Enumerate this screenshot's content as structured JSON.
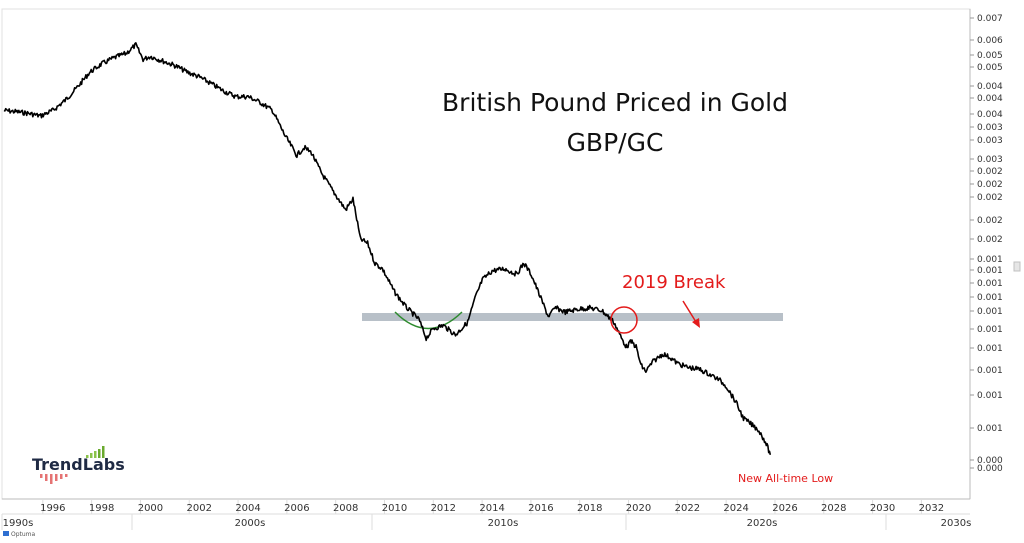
{
  "chart_data": {
    "type": "line",
    "title": "British Pound Priced in Gold",
    "subtitle": "GBP/GC",
    "scale": "log",
    "grid": false,
    "x_tick_labels": [
      "1996",
      "1998",
      "2000",
      "2002",
      "2004",
      "2006",
      "2008",
      "2010",
      "2012",
      "2014",
      "2016",
      "2018",
      "2020",
      "2022",
      "2024",
      "2026",
      "2028",
      "2030",
      "2032"
    ],
    "era_labels": [
      "1990s",
      "2000s",
      "2010s",
      "2020s",
      "2030s"
    ],
    "y_tick_labels": [
      "0.007",
      "0.006",
      "0.005",
      "0.005",
      "0.004",
      "0.004",
      "0.004",
      "0.003",
      "0.003",
      "0.003",
      "0.002",
      "0.002",
      "0.002",
      "0.002",
      "0.002",
      "0.001",
      "0.001",
      "0.001",
      "0.001",
      "0.001",
      "0.001",
      "0.001",
      "0.001",
      "0.001",
      "0.001",
      "0.000",
      "0.000"
    ],
    "series": [
      {
        "color": "#000000",
        "x": [
          1994.0,
          1994.5,
          1995.0,
          1995.5,
          1996.0,
          1996.5,
          1997.0,
          1997.5,
          1998.0,
          1998.5,
          1999.0,
          1999.4,
          1999.7,
          2000.0,
          2000.5,
          2001.0,
          2001.5,
          2002.0,
          2002.5,
          2003.0,
          2003.5,
          2004.0,
          2004.5,
          2005.0,
          2005.5,
          2006.0,
          2006.3,
          2006.6,
          2007.0,
          2007.5,
          2008.0,
          2008.3,
          2008.6,
          2008.9,
          2009.2,
          2009.5,
          2010.0,
          2010.5,
          2011.0,
          2011.3,
          2011.6,
          2012.0,
          2012.5,
          2013.0,
          2013.3,
          2013.6,
          2014.0,
          2014.5,
          2015.0,
          2015.3,
          2015.6,
          2016.0,
          2016.3,
          2016.6,
          2017.0,
          2017.5,
          2018.0,
          2018.5,
          2019.0,
          2019.3,
          2019.5,
          2019.7,
          2019.9,
          2020.1,
          2020.3,
          2020.6,
          2021.0,
          2021.3,
          2021.6,
          2022.0,
          2022.5,
          2023.0,
          2023.3,
          2023.6,
          2024.0,
          2024.3,
          2024.6,
          2024.9,
          2025.2,
          2025.4
        ],
        "values": [
          0.00395,
          0.00392,
          0.00388,
          0.00382,
          0.00395,
          0.0042,
          0.00455,
          0.00498,
          0.00525,
          0.00545,
          0.0056,
          0.0059,
          0.0054,
          0.0055,
          0.00535,
          0.0052,
          0.005,
          0.00485,
          0.00465,
          0.00445,
          0.0043,
          0.0043,
          0.00415,
          0.00395,
          0.0034,
          0.003,
          0.00315,
          0.00305,
          0.0027,
          0.0024,
          0.00215,
          0.0023,
          0.0018,
          0.00175,
          0.00155,
          0.0015,
          0.0013,
          0.00118,
          0.0011,
          0.00098,
          0.00104,
          0.00106,
          0.001,
          0.00108,
          0.00125,
          0.0014,
          0.00148,
          0.0015,
          0.00145,
          0.00155,
          0.00145,
          0.00125,
          0.00112,
          0.00118,
          0.00115,
          0.00117,
          0.00118,
          0.00116,
          0.00108,
          0.00098,
          0.00093,
          0.00096,
          0.00093,
          0.00083,
          0.0008,
          0.00085,
          0.00089,
          0.00087,
          0.00084,
          0.00082,
          0.00081,
          0.00078,
          0.00076,
          0.00073,
          0.00066,
          0.0006,
          0.00058,
          0.00056,
          0.00052,
          0.00048
        ]
      }
    ],
    "annotations": [
      {
        "id": "break",
        "text": "2019 Break",
        "color": "#e31b1b"
      },
      {
        "id": "low",
        "text": "New All-time Low",
        "color": "#e31b1b"
      }
    ],
    "support_line": {
      "color": "#b8c0c8"
    },
    "arc_color": "#2e8b2e"
  },
  "brand": {
    "name": "TrendLabs",
    "footer": "Optuma"
  }
}
